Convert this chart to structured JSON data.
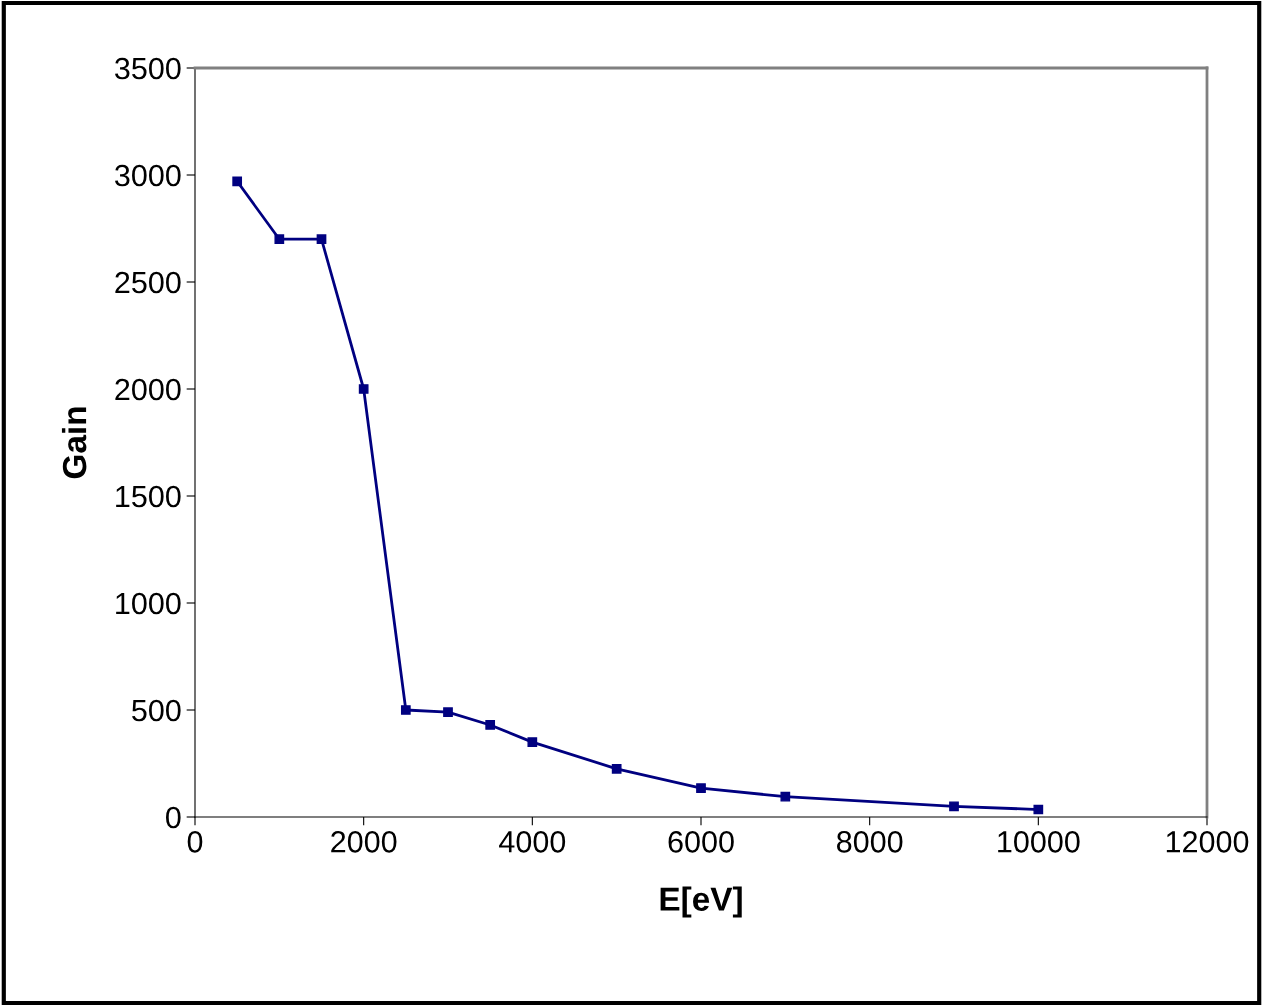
{
  "chart_data": {
    "type": "line",
    "xlabel": "E[eV]",
    "ylabel": "Gain",
    "x": [
      500,
      1000,
      1500,
      2000,
      2500,
      3000,
      3500,
      4000,
      5000,
      6000,
      7000,
      9000,
      10000
    ],
    "series": [
      {
        "color": "#000080",
        "values": [
          2970,
          2700,
          2700,
          2000,
          500,
          490,
          430,
          350,
          225,
          135,
          95,
          50,
          35
        ]
      }
    ],
    "xlim": [
      0,
      12000
    ],
    "xticks": [
      0,
      2000,
      4000,
      6000,
      8000,
      10000,
      12000
    ],
    "ylim": [
      0,
      3500
    ],
    "yticks": [
      0,
      500,
      1000,
      1500,
      2000,
      2500,
      3000,
      3500
    ],
    "grid": false,
    "legend": false,
    "marker": "square",
    "line_style": "solid"
  }
}
